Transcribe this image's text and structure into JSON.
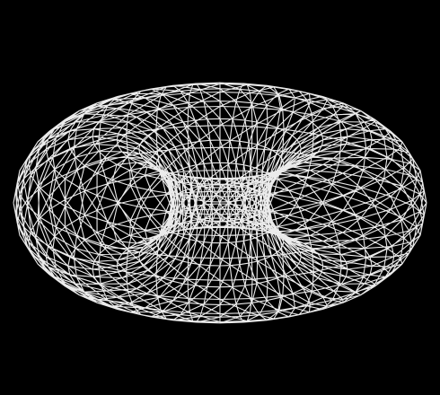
{
  "scene": {
    "subject": "torus-wireframe-icon",
    "background_color": "#000000",
    "line_color": "#ffffff",
    "tube_segments": 20,
    "ring_segments": 40,
    "diagonal_triangulation": true
  }
}
